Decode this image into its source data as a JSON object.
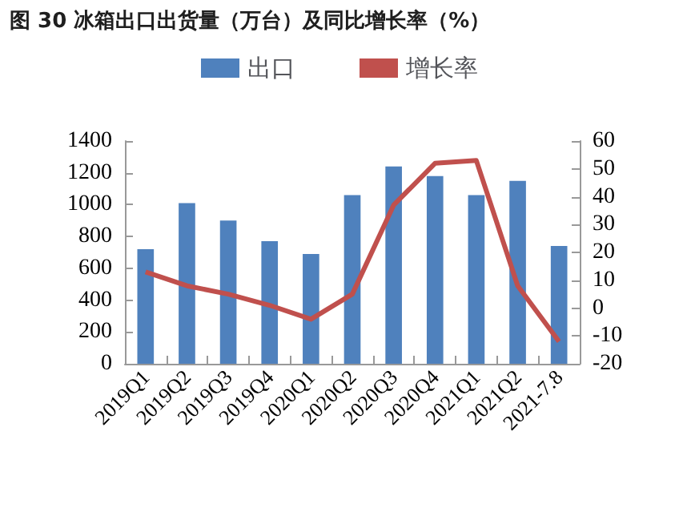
{
  "chart_data": {
    "type": "bar",
    "title": "图 30 冰箱出口出货量（万台）及同比增长率（%）",
    "categories": [
      "2019Q1",
      "2019Q2",
      "2019Q3",
      "2019Q4",
      "2020Q1",
      "2020Q2",
      "2020Q3",
      "2020Q4",
      "2021Q1",
      "2021Q2",
      "2021-7.8"
    ],
    "series": [
      {
        "name": "出口",
        "color": "#4f81bd",
        "values": [
          720,
          1010,
          900,
          770,
          690,
          1060,
          1240,
          1180,
          1060,
          1150,
          740
        ]
      },
      {
        "name": "增长率",
        "type": "line",
        "axis": "y2",
        "color": "#c0504d",
        "values": [
          13,
          8,
          5,
          1,
          -4,
          5,
          37,
          52,
          53,
          8,
          -12
        ]
      }
    ],
    "ylim": [
      0,
      1400
    ],
    "yticks": [
      0,
      200,
      400,
      600,
      800,
      1000,
      1200,
      1400
    ],
    "y2lim": [
      -20,
      60
    ],
    "y2ticks": [
      -20,
      -10,
      0,
      10,
      20,
      30,
      40,
      50,
      60
    ],
    "legend": "top",
    "grid": false,
    "marker": "none"
  }
}
